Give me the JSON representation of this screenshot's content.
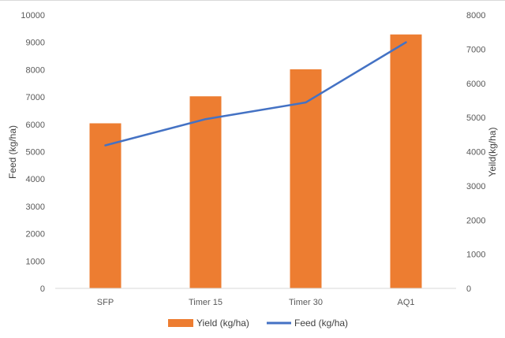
{
  "chart_data": {
    "type": "bar",
    "categories": [
      "SFP",
      "Timer 15",
      "Timer 30",
      "AQ1"
    ],
    "series": [
      {
        "name": "Yield (kg/ha)",
        "type": "bar",
        "axis": "right",
        "color": "#ed7d31",
        "values": [
          4830,
          5620,
          6410,
          7430
        ]
      },
      {
        "name": "Feed (kg/ha)",
        "type": "line",
        "axis": "left",
        "color": "#4472c4",
        "values": [
          5230,
          6190,
          6800,
          9000
        ]
      }
    ],
    "ylabel_left": "Feed (kg/ha)",
    "ylabel_right": "Yeild(kg/ha)",
    "ylim_left": [
      0,
      10000
    ],
    "ylim_right": [
      0,
      8000
    ],
    "yticks_left": [
      "0",
      "1000",
      "2000",
      "3000",
      "4000",
      "5000",
      "6000",
      "7000",
      "8000",
      "9000",
      "10000"
    ],
    "yticks_right": [
      "0",
      "1000",
      "2000",
      "3000",
      "4000",
      "5000",
      "6000",
      "7000",
      "8000"
    ],
    "grid": false,
    "legend_position": "bottom"
  }
}
